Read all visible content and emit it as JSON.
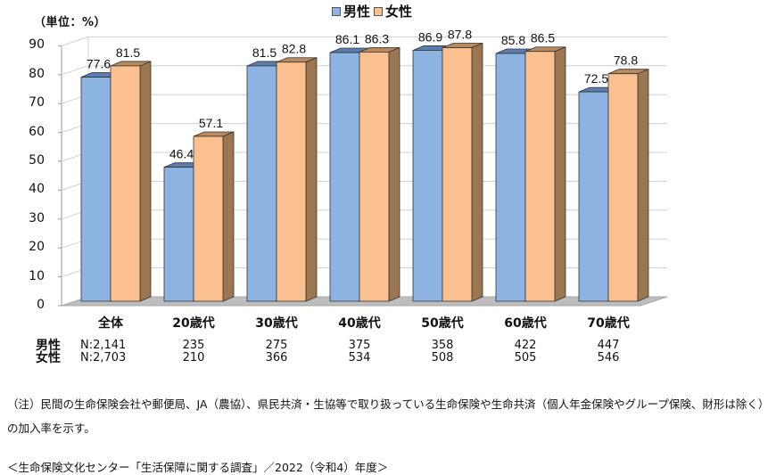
{
  "chart_data": {
    "type": "bar",
    "style": "3d-clustered-column",
    "title": "",
    "unit_label": "（単位：%）",
    "xlabel": "",
    "ylabel": "",
    "ylim": [
      0,
      90
    ],
    "yticks": [
      0,
      10,
      20,
      30,
      40,
      50,
      60,
      70,
      80,
      90
    ],
    "grid": true,
    "legend_position": "top",
    "categories": [
      "全体",
      "20歳代",
      "30歳代",
      "40歳代",
      "50歳代",
      "60歳代",
      "70歳代"
    ],
    "series": [
      {
        "name": "男性",
        "color": "#8db3e2",
        "values": [
          77.6,
          46.4,
          81.5,
          86.1,
          86.9,
          85.8,
          72.5
        ]
      },
      {
        "name": "女性",
        "color": "#fac08f",
        "values": [
          81.5,
          57.1,
          82.8,
          86.3,
          87.8,
          86.5,
          78.8
        ]
      }
    ],
    "sample_sizes": {
      "男性": [
        "N:2,141",
        "235",
        "275",
        "375",
        "358",
        "422",
        "447"
      ],
      "女性": [
        "N:2,703",
        "210",
        "366",
        "534",
        "508",
        "505",
        "546"
      ]
    }
  },
  "legend": {
    "items": [
      {
        "label": "男性",
        "color": "#8db3e2"
      },
      {
        "label": "女性",
        "color": "#fac08f"
      }
    ]
  },
  "n_table": {
    "row_labels": [
      "男性",
      "女性"
    ]
  },
  "footer": {
    "note": "（注）民間の生命保険会社や郵便局、JA（農協）、県民共済・生協等で取り扱っている生命保険や生命共済（個人年金保険やグループ保険、財形は除く）の加入率を示す。",
    "source": "＜生命保険文化センター「生活保障に関する調査」／2022（令和4）年度＞"
  },
  "colors": {
    "male_front": "#8db3e2",
    "male_top": "#5a7fae",
    "male_side": "#4a6a96",
    "female_front": "#fac08f",
    "female_top": "#b88a5e",
    "female_side": "#9c7650",
    "grid": "#d0d0d0",
    "floor": "#bdbdbd"
  }
}
